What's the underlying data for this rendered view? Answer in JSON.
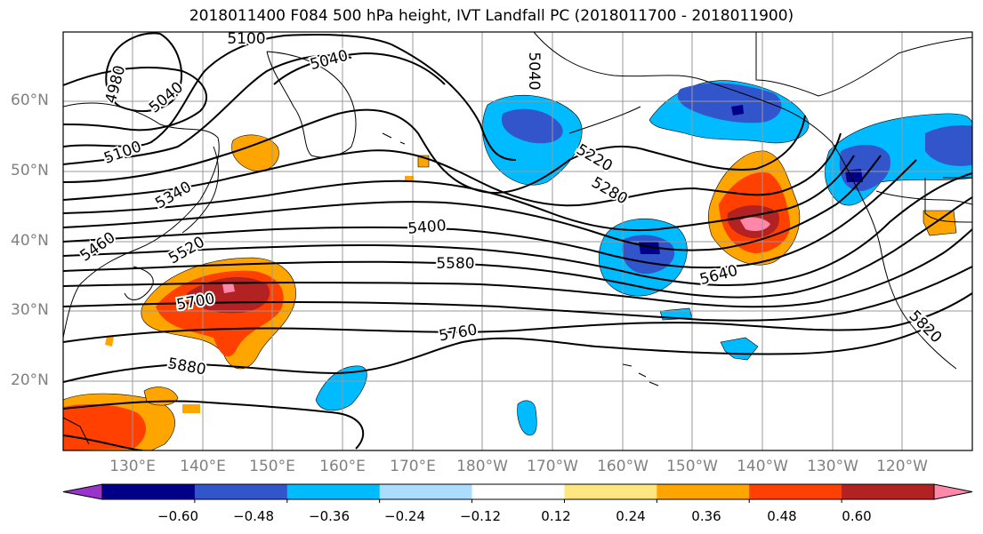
{
  "title": "2018011400 F084 500 hPa height, IVT Landfall PC (2018011700 - 2018011900)",
  "lat_labels": [
    "60°N",
    "50°N",
    "40°N",
    "30°N",
    "20°N"
  ],
  "lon_labels": [
    "130°E",
    "140°E",
    "150°E",
    "160°E",
    "170°E",
    "180°W",
    "170°W",
    "160°W",
    "150°W",
    "140°W",
    "130°W",
    "120°W"
  ],
  "contour_labels": [
    "5100",
    "5040",
    "4980",
    "5040",
    "5100",
    "5220",
    "5280",
    "5340",
    "5400",
    "5460",
    "5520",
    "5580",
    "5640",
    "5700",
    "5760",
    "5820",
    "5880",
    "5040"
  ],
  "colorbar": {
    "ticks": [
      "−0.60",
      "−0.48",
      "−0.36",
      "−0.24",
      "−0.12",
      "0.12",
      "0.24",
      "0.36",
      "0.48",
      "0.60"
    ],
    "colors": [
      "#9933cc",
      "#000088",
      "#3355cc",
      "#00bbff",
      "#aaddff",
      "#ffffff",
      "#ffe680",
      "#ffa500",
      "#ff4000",
      "#b22222",
      "#ff88aa"
    ]
  }
}
